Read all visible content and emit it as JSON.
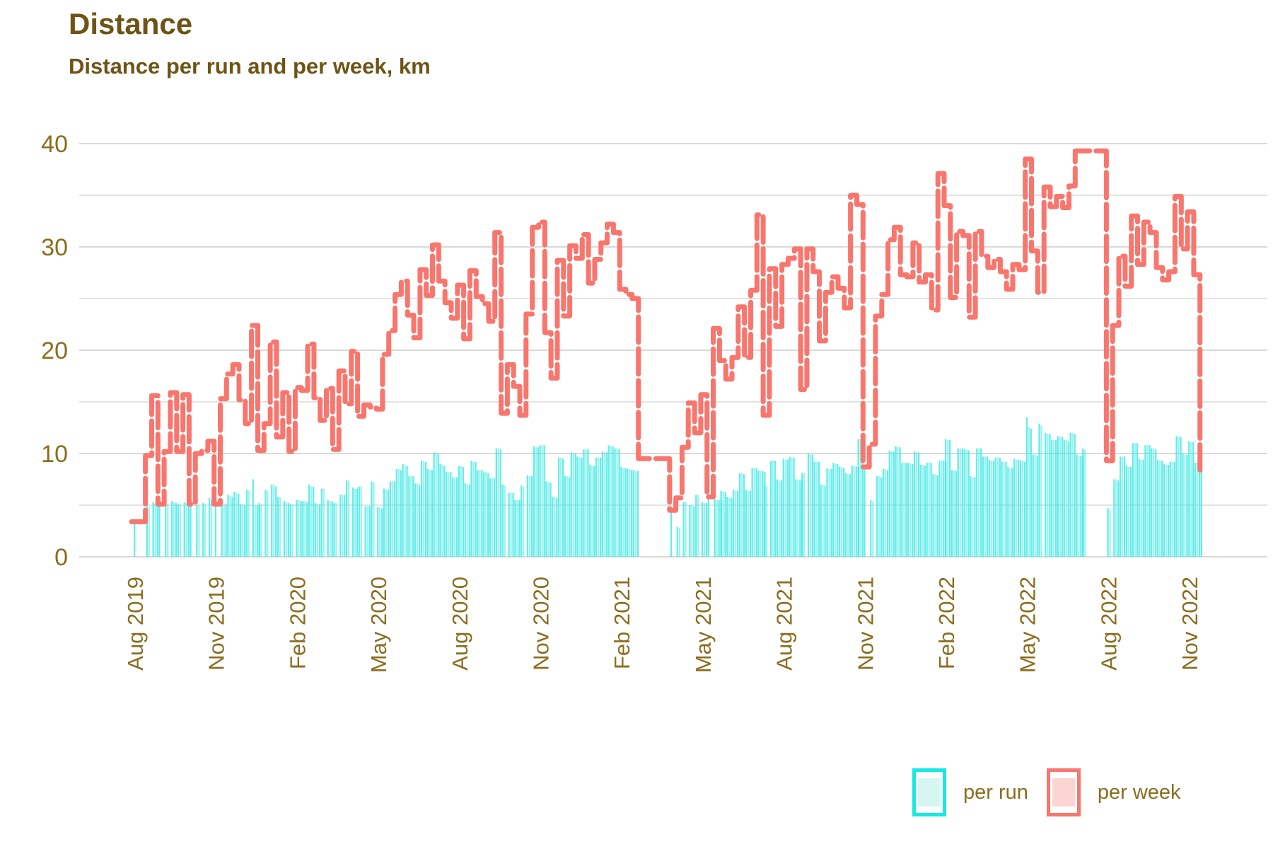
{
  "title": "Distance",
  "subtitle": "Distance per run and per week, km",
  "legend": {
    "per_run_label": "per run",
    "per_week_label": "per week"
  },
  "colors": {
    "title_text": "#6d5415",
    "axis_text": "#8a6d1e",
    "grid_major": "#d9d9d9",
    "grid_minor": "#e3e3e3",
    "per_run_bar": "#3ee8e4",
    "per_run_legend_border": "#17e8e3",
    "per_run_legend_fill": "#d6f6f3",
    "per_week_line": "#f8766d",
    "per_week_legend_fill": "#fbd5d1",
    "background": "#ffffff"
  },
  "chart_data": {
    "type": "bar",
    "title": "Distance",
    "subtitle": "Distance per run and per week, km",
    "unit": "km",
    "xlabel": "",
    "ylabel": "",
    "ylim": [
      0,
      40
    ],
    "y_major_ticks": [
      0,
      10,
      20,
      30,
      40
    ],
    "y_minor_ticks": [
      5,
      15,
      25,
      35
    ],
    "grid": "on",
    "legend_position": "bottom-right",
    "x_tick_labels": [
      "Aug 2019",
      "Nov 2019",
      "Feb 2020",
      "May 2020",
      "Aug 2020",
      "Nov 2020",
      "Feb 2021",
      "May 2021",
      "Aug 2021",
      "Nov 2021",
      "Feb 2022",
      "May 2022",
      "Aug 2022",
      "Nov 2022"
    ],
    "series": [
      {
        "name": "per week",
        "type": "step",
        "color": "#f8766d",
        "weekly_km": [
          3.4,
          3.4,
          9.8,
          15.6,
          5.1,
          10.2,
          15.9,
          10.2,
          15.7,
          5.1,
          10.0,
          10.3,
          11.2,
          5.1,
          15.3,
          17.7,
          18.6,
          15.2,
          12.9,
          22.4,
          10.3,
          12.9,
          20.8,
          11.6,
          15.9,
          10.2,
          16.4,
          16.1,
          20.6,
          15.4,
          13.2,
          16.3,
          10.4,
          18.0,
          14.8,
          19.9,
          13.6,
          14.7,
          14.5,
          14.3,
          19.6,
          21.9,
          25.4,
          26.7,
          23.4,
          21.2,
          27.8,
          25.3,
          30.2,
          26.7,
          24.6,
          23.1,
          26.3,
          21.1,
          27.7,
          25.2,
          24.5,
          22.8,
          31.4,
          13.9,
          18.6,
          16.5,
          13.7,
          23.5,
          31.9,
          32.4,
          21.7,
          17.3,
          28.7,
          23.3,
          30.1,
          28.9,
          31.2,
          26.5,
          28.8,
          30.4,
          32.2,
          31.4,
          25.9,
          25.4,
          25.0,
          9.5,
          9.5,
          9.5,
          9.5,
          9.5,
          4.5,
          5.7,
          10.6,
          14.9,
          12.0,
          15.7,
          5.8,
          22.1,
          19.0,
          17.2,
          19.3,
          24.2,
          19.3,
          25.8,
          33.1,
          13.7,
          27.9,
          22.3,
          28.3,
          28.9,
          29.8,
          16.2,
          29.8,
          27.6,
          20.9,
          25.6,
          27.1,
          26.0,
          24.1,
          35.0,
          34.1,
          8.7,
          10.9,
          23.3,
          25.4,
          30.7,
          31.9,
          27.3,
          27.1,
          30.4,
          26.6,
          27.3,
          23.9,
          37.1,
          34.0,
          25.1,
          31.5,
          31.1,
          23.2,
          31.5,
          29.1,
          28.0,
          28.8,
          27.6,
          25.9,
          28.3,
          27.8,
          38.5,
          29.6,
          25.6,
          35.8,
          33.9,
          34.9,
          33.8,
          35.9,
          39.3,
          39.3,
          39.3,
          39.3,
          39.3,
          9.3,
          22.4,
          29.1,
          26.2,
          33.0,
          28.3,
          32.4,
          31.4,
          28.0,
          26.8,
          27.6,
          34.9,
          29.8,
          33.4,
          27.3,
          8.4
        ]
      },
      {
        "name": "per run",
        "type": "bar",
        "color": "#3ee8e4",
        "runs_by_week": [
          [
            3.4
          ],
          [],
          [
            5.0,
            4.8
          ],
          [
            5.3,
            5.2,
            5.1
          ],
          [
            5.1
          ],
          [
            5.1,
            5.1
          ],
          [
            5.4,
            5.3,
            5.2
          ],
          [
            5.1,
            5.1
          ],
          [
            5.3,
            5.2,
            5.2
          ],
          [
            5.1
          ],
          [
            5.0,
            5.0
          ],
          [
            5.2,
            5.1
          ],
          [
            5.7,
            5.5
          ],
          [
            5.1
          ],
          [
            5.1,
            5.1,
            5.1
          ],
          [
            6.0,
            5.9,
            5.8
          ],
          [
            6.3,
            6.2,
            6.1
          ],
          [
            5.1,
            5.1,
            5.0
          ],
          [
            6.5,
            6.4
          ],
          [
            7.5,
            5.0,
            5.0,
            4.9
          ],
          [
            5.2,
            5.1
          ],
          [
            6.5,
            6.4
          ],
          [
            7.0,
            7.0,
            6.8
          ],
          [
            5.8,
            5.8
          ],
          [
            5.4,
            5.3,
            5.2
          ],
          [
            5.1,
            5.1
          ],
          [
            5.5,
            5.5,
            5.4
          ],
          [
            5.4,
            5.4,
            5.3
          ],
          [
            7.0,
            6.8,
            6.8
          ],
          [
            5.2,
            5.1,
            5.1
          ],
          [
            6.6,
            6.6
          ],
          [
            5.5,
            5.4,
            5.4
          ],
          [
            5.2,
            5.2
          ],
          [
            6.0,
            6.0,
            6.0
          ],
          [
            7.4,
            7.4
          ],
          [
            6.7,
            6.6,
            6.6
          ],
          [
            6.8,
            6.8
          ],
          [
            4.9,
            4.9,
            4.9
          ],
          [
            7.3,
            7.2
          ],
          [
            4.8,
            4.8,
            4.7
          ],
          [
            6.6,
            6.5,
            6.5
          ],
          [
            7.3,
            7.3,
            7.3
          ],
          [
            8.5,
            8.5,
            8.4
          ],
          [
            9.0,
            8.9,
            8.8
          ],
          [
            7.8,
            7.8,
            7.8
          ],
          [
            7.1,
            7.1,
            7.0
          ],
          [
            9.3,
            9.3,
            9.2
          ],
          [
            8.5,
            8.4,
            8.4
          ],
          [
            10.1,
            10.1,
            10.0
          ],
          [
            9.0,
            8.9,
            8.8
          ],
          [
            8.2,
            8.2,
            8.2
          ],
          [
            7.7,
            7.7,
            7.7
          ],
          [
            8.8,
            8.8,
            8.7
          ],
          [
            7.1,
            7.0,
            7.0
          ],
          [
            9.3,
            9.2,
            9.2
          ],
          [
            8.4,
            8.4,
            8.4
          ],
          [
            8.2,
            8.2,
            8.1
          ],
          [
            7.6,
            7.6,
            7.6
          ],
          [
            10.5,
            10.5,
            10.4
          ],
          [
            7.0,
            6.9
          ],
          [
            6.2,
            6.2,
            6.2
          ],
          [
            5.5,
            5.5,
            5.5
          ],
          [
            6.9,
            6.8
          ],
          [
            7.9,
            7.8,
            7.8
          ],
          [
            10.7,
            10.6,
            10.6
          ],
          [
            10.8,
            10.8,
            10.8
          ],
          [
            7.3,
            7.2,
            7.2
          ],
          [
            5.8,
            5.8,
            5.7
          ],
          [
            9.6,
            9.6,
            9.5
          ],
          [
            7.8,
            7.8,
            7.7
          ],
          [
            10.1,
            10.0,
            10.0
          ],
          [
            9.7,
            9.6,
            9.6
          ],
          [
            10.4,
            10.4,
            10.4
          ],
          [
            8.9,
            8.8,
            8.8
          ],
          [
            9.6,
            9.6,
            9.6
          ],
          [
            10.2,
            10.1,
            10.1
          ],
          [
            10.8,
            10.7,
            10.7
          ],
          [
            10.5,
            10.5,
            10.4
          ],
          [
            8.7,
            8.6,
            8.6
          ],
          [
            8.5,
            8.5,
            8.4
          ],
          [
            8.4,
            8.3,
            8.3
          ],
          [],
          [],
          [],
          [],
          [],
          [
            4.5
          ],
          [
            2.9,
            2.8
          ],
          [
            5.3,
            5.3
          ],
          [
            5.0,
            5.0,
            4.9
          ],
          [
            6.0,
            6.0
          ],
          [
            5.3,
            5.2,
            5.2
          ],
          [
            5.8
          ],
          [
            5.6,
            5.5,
            5.5,
            5.5
          ],
          [
            6.4,
            6.3,
            6.3
          ],
          [
            5.8,
            5.7,
            5.7
          ],
          [
            6.5,
            6.4,
            6.4
          ],
          [
            8.1,
            8.1,
            8.0
          ],
          [
            6.5,
            6.4,
            6.4
          ],
          [
            8.6,
            8.6,
            8.6
          ],
          [
            8.3,
            8.3,
            8.3,
            8.2
          ],
          [
            6.9,
            6.8
          ],
          [
            9.3,
            9.3,
            9.3
          ],
          [
            7.5,
            7.4,
            7.4
          ],
          [
            9.5,
            9.4,
            9.4
          ],
          [
            9.7,
            9.6,
            9.6
          ],
          [
            7.5,
            7.5,
            7.4,
            7.4
          ],
          [
            8.1,
            8.1
          ],
          [
            10.0,
            9.9,
            9.9
          ],
          [
            9.2,
            9.2,
            9.2
          ],
          [
            7.0,
            7.0,
            6.9
          ],
          [
            8.6,
            8.5,
            8.5
          ],
          [
            9.1,
            9.0,
            9.0
          ],
          [
            8.7,
            8.7,
            8.6
          ],
          [
            8.1,
            8.0,
            8.0
          ],
          [
            8.8,
            8.8,
            8.7,
            8.7
          ],
          [
            11.4,
            11.4,
            11.3
          ],
          [
            8.7
          ],
          [
            5.5,
            5.4
          ],
          [
            7.8,
            7.8,
            7.7
          ],
          [
            8.5,
            8.5,
            8.4
          ],
          [
            10.3,
            10.2,
            10.2
          ],
          [
            10.7,
            10.6,
            10.6
          ],
          [
            9.1,
            9.1,
            9.1
          ],
          [
            9.1,
            9.0,
            9.0
          ],
          [
            10.2,
            10.1,
            10.1
          ],
          [
            8.9,
            8.9,
            8.8
          ],
          [
            9.1,
            9.1,
            9.1
          ],
          [
            8.0,
            8.0,
            7.9
          ],
          [
            9.3,
            9.3,
            9.3,
            9.2
          ],
          [
            11.4,
            11.3,
            11.3
          ],
          [
            8.4,
            8.4,
            8.3
          ],
          [
            10.5,
            10.5,
            10.5
          ],
          [
            10.4,
            10.4,
            10.3
          ],
          [
            7.8,
            7.7,
            7.7
          ],
          [
            10.5,
            10.5,
            10.5
          ],
          [
            9.7,
            9.7,
            9.7
          ],
          [
            9.4,
            9.3,
            9.3
          ],
          [
            9.6,
            9.6,
            9.6
          ],
          [
            9.2,
            9.2,
            9.2
          ],
          [
            8.7,
            8.6,
            8.6
          ],
          [
            9.5,
            9.4,
            9.4
          ],
          [
            9.3,
            9.3,
            9.2
          ],
          [
            13.5,
            12.6,
            12.4
          ],
          [
            9.9,
            9.9,
            9.8
          ],
          [
            12.9,
            12.7
          ],
          [
            12.0,
            11.9,
            11.9
          ],
          [
            11.3,
            11.3,
            11.3
          ],
          [
            11.7,
            11.6,
            11.6
          ],
          [
            11.3,
            11.3,
            11.2
          ],
          [
            12.0,
            12.0,
            11.9
          ],
          [
            9.9,
            9.8,
            9.8,
            9.8
          ],
          [
            10.5,
            10.4
          ],
          [],
          [],
          [],
          [
            4.7,
            4.6
          ],
          [
            7.5,
            7.5,
            7.4
          ],
          [
            9.7,
            9.7,
            9.7
          ],
          [
            8.8,
            8.7,
            8.7
          ],
          [
            11.0,
            11.0,
            11.0
          ],
          [
            9.5,
            9.4,
            9.4
          ],
          [
            10.8,
            10.8,
            10.8
          ],
          [
            10.5,
            10.5,
            10.4
          ],
          [
            9.4,
            9.3,
            9.3
          ],
          [
            9.0,
            8.9,
            8.9
          ],
          [
            9.2,
            9.2,
            9.2
          ],
          [
            11.7,
            11.6,
            11.6
          ],
          [
            10.0,
            9.9,
            9.9
          ],
          [
            11.2,
            11.1,
            11.1
          ],
          [
            9.1,
            9.1,
            9.1
          ],
          [
            8.4
          ]
        ]
      }
    ]
  }
}
